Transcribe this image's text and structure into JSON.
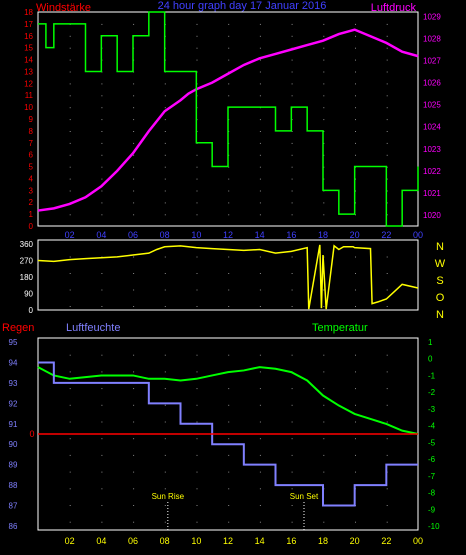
{
  "chart_data": [
    {
      "type": "line",
      "title": "24 hour graph day  17 Januar 2016",
      "left_axis_title": "Windstärke",
      "right_axis_title": "Luftdruck",
      "x": {
        "ticks": [
          "02",
          "04",
          "06",
          "08",
          "10",
          "12",
          "14",
          "16",
          "18",
          "20",
          "22",
          "00"
        ],
        "range": [
          0,
          24
        ]
      },
      "left_axis": {
        "ticks": [
          "0",
          "1",
          "2",
          "3",
          "4",
          "5",
          "6",
          "7",
          "8",
          "9",
          "10",
          "11",
          "12",
          "13",
          "14",
          "15",
          "16",
          "17",
          "18"
        ],
        "range": [
          0,
          18
        ]
      },
      "right_axis": {
        "ticks": [
          "1020",
          "1021",
          "1022",
          "1023",
          "1024",
          "1025",
          "1026",
          "1027",
          "1028",
          "1029"
        ],
        "range": [
          1019.5,
          1029.2
        ]
      },
      "series": [
        {
          "color": "#ff00ff",
          "axis": "right",
          "x": [
            0,
            1,
            2,
            3,
            4,
            5,
            6,
            7,
            8,
            9,
            9.5,
            10,
            11,
            12,
            13,
            14,
            15,
            16,
            17,
            18,
            19,
            20,
            21,
            22,
            23,
            24
          ],
          "values": [
            1020.2,
            1020.3,
            1020.5,
            1020.8,
            1021.3,
            1022.0,
            1022.8,
            1023.8,
            1024.7,
            1025.2,
            1025.5,
            1025.7,
            1026.0,
            1026.4,
            1026.8,
            1027.1,
            1027.3,
            1027.5,
            1027.7,
            1027.9,
            1028.2,
            1028.4,
            1028.1,
            1027.8,
            1027.4,
            1027.2
          ]
        },
        {
          "color": "#00ff00",
          "axis": "left",
          "step": true,
          "x": [
            0,
            0.5,
            1,
            3,
            4,
            5,
            6,
            7,
            8,
            10,
            11,
            12,
            14,
            15,
            16,
            17,
            18,
            19,
            20,
            21,
            22,
            23,
            24
          ],
          "values": [
            17,
            15,
            17,
            13,
            16,
            13,
            16,
            18,
            13,
            7,
            5,
            10,
            10,
            8,
            10,
            8,
            3,
            1,
            5,
            5,
            0,
            3,
            5
          ]
        }
      ]
    },
    {
      "type": "line",
      "title": "",
      "y_ticks": [
        "0",
        "90",
        "180",
        "270",
        "360"
      ],
      "y_range": [
        0,
        360
      ],
      "right_labels": [
        "N",
        "W",
        "S",
        "O",
        "N"
      ],
      "series": [
        {
          "color": "#ffff00",
          "x": [
            0,
            1,
            2,
            3,
            4,
            5,
            6,
            7,
            7.5,
            8,
            9,
            10,
            11,
            12,
            13,
            14,
            15,
            16,
            17,
            17.1,
            17.8,
            17.9,
            18,
            18.2,
            18.7,
            19,
            19.3,
            19.9,
            20,
            21,
            21.1,
            21.5,
            22,
            22.5,
            23,
            24
          ],
          "values": [
            270,
            265,
            275,
            280,
            285,
            290,
            300,
            310,
            330,
            345,
            350,
            340,
            335,
            330,
            325,
            330,
            310,
            320,
            340,
            5,
            355,
            10,
            300,
            5,
            350,
            330,
            345,
            345,
            340,
            335,
            35,
            45,
            60,
            100,
            140,
            120
          ]
        }
      ]
    },
    {
      "type": "line",
      "title": "",
      "left_axis_title": "Regen",
      "middle_title": "Luftfeuchte",
      "right_axis_title": "Temperatur",
      "humidity_ticks": [
        "86",
        "87",
        "88",
        "89",
        "90",
        "91",
        "92",
        "93",
        "94",
        "95"
      ],
      "humidity_range": [
        86,
        95
      ],
      "temperature_ticks": [
        "1",
        "0",
        "-1",
        "-2",
        "-3",
        "-4",
        "-5",
        "-6",
        "-7",
        "-8",
        "-9",
        "-10"
      ],
      "temperature_range": [
        -10,
        1
      ],
      "rain_tick": "0",
      "annotations": [
        {
          "label": "Sun Rise",
          "x": 8.2
        },
        {
          "label": "Sun Set",
          "x": 16.8
        }
      ],
      "series": [
        {
          "color": "#00ff00",
          "axis": "temperature",
          "x": [
            0,
            1,
            2,
            3,
            4,
            5,
            6,
            7,
            8,
            9,
            10,
            11,
            12,
            13,
            14,
            15,
            16,
            17,
            18,
            19,
            20,
            21,
            22,
            23,
            24
          ],
          "values": [
            -0.5,
            -1,
            -1.2,
            -1.1,
            -1,
            -1,
            -1,
            -1.2,
            -1.2,
            -1.3,
            -1.2,
            -1,
            -0.8,
            -0.7,
            -0.5,
            -0.6,
            -0.8,
            -1.3,
            -2.2,
            -2.8,
            -3.3,
            -3.6,
            -3.9,
            -4.3,
            -4.5
          ]
        },
        {
          "color": "#8080ff",
          "axis": "humidity",
          "step": true,
          "x": [
            0,
            1,
            3,
            7,
            9,
            11,
            13,
            15,
            18,
            20,
            22,
            24
          ],
          "values": [
            94,
            93,
            93,
            92,
            91,
            90,
            89,
            88,
            87,
            88,
            89,
            89
          ]
        },
        {
          "color": "#ff0000",
          "axis": "rain",
          "x": [
            0,
            24
          ],
          "values": [
            0,
            0
          ]
        }
      ]
    }
  ]
}
